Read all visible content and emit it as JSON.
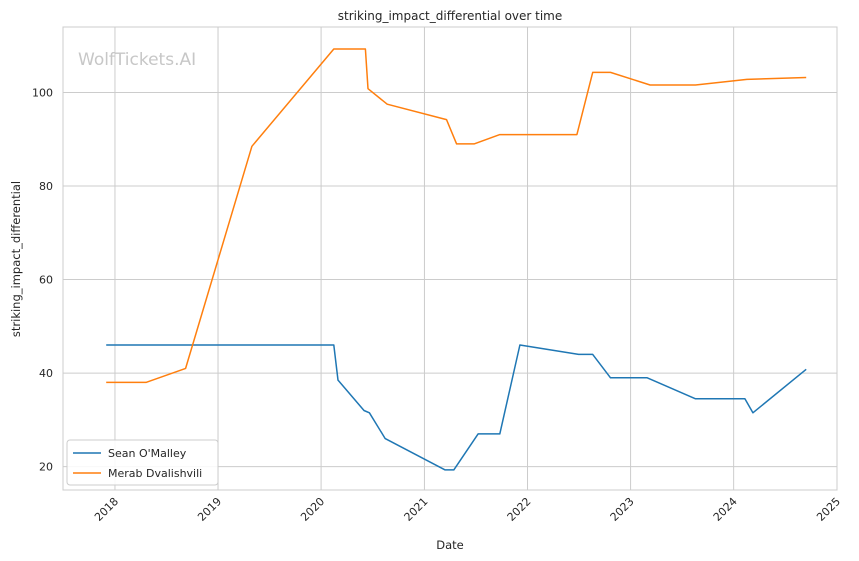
{
  "chart_data": {
    "type": "line",
    "title": "striking_impact_differential over time",
    "xlabel": "Date",
    "ylabel": "striking_impact_differential",
    "watermark": "WolfTickets.AI",
    "xlim": [
      "2017-07-01",
      "2025-01-01"
    ],
    "ylim": [
      15,
      114
    ],
    "x_ticks": [
      "2018",
      "2019",
      "2020",
      "2021",
      "2022",
      "2023",
      "2024",
      "2025"
    ],
    "y_ticks": [
      20,
      40,
      60,
      80,
      100
    ],
    "grid": true,
    "legend_position": "lower-left",
    "series": [
      {
        "name": "Sean O'Malley",
        "color": "#1f77b4",
        "points": [
          [
            "2017-12-01",
            46.0
          ],
          [
            "2020-02-15",
            46.0
          ],
          [
            "2020-03-01",
            38.5
          ],
          [
            "2020-06-01",
            32.0
          ],
          [
            "2020-06-20",
            31.5
          ],
          [
            "2020-08-15",
            26.0
          ],
          [
            "2021-03-15",
            19.3
          ],
          [
            "2021-04-15",
            19.3
          ],
          [
            "2021-07-10",
            27.0
          ],
          [
            "2021-09-25",
            27.0
          ],
          [
            "2021-12-05",
            46.0
          ],
          [
            "2022-07-01",
            44.0
          ],
          [
            "2022-08-20",
            44.0
          ],
          [
            "2022-10-22",
            39.0
          ],
          [
            "2023-03-01",
            39.0
          ],
          [
            "2023-08-19",
            34.5
          ],
          [
            "2024-02-10",
            34.5
          ],
          [
            "2024-03-09",
            31.5
          ],
          [
            "2024-09-14",
            40.8
          ]
        ]
      },
      {
        "name": "Merab Dvalishvili",
        "color": "#ff7f0e",
        "points": [
          [
            "2017-12-01",
            38.0
          ],
          [
            "2018-04-21",
            38.0
          ],
          [
            "2018-09-08",
            41.0
          ],
          [
            "2019-05-01",
            88.5
          ],
          [
            "2020-02-15",
            109.3
          ],
          [
            "2020-06-06",
            109.3
          ],
          [
            "2020-06-15",
            100.8
          ],
          [
            "2020-08-22",
            97.5
          ],
          [
            "2021-03-20",
            94.2
          ],
          [
            "2021-04-25",
            89.0
          ],
          [
            "2021-06-26",
            89.0
          ],
          [
            "2021-09-25",
            91.0
          ],
          [
            "2022-06-25",
            91.0
          ],
          [
            "2022-08-20",
            104.3
          ],
          [
            "2022-10-22",
            104.3
          ],
          [
            "2023-03-11",
            101.6
          ],
          [
            "2023-08-19",
            101.6
          ],
          [
            "2024-02-17",
            102.8
          ],
          [
            "2024-09-14",
            103.2
          ]
        ]
      }
    ]
  }
}
